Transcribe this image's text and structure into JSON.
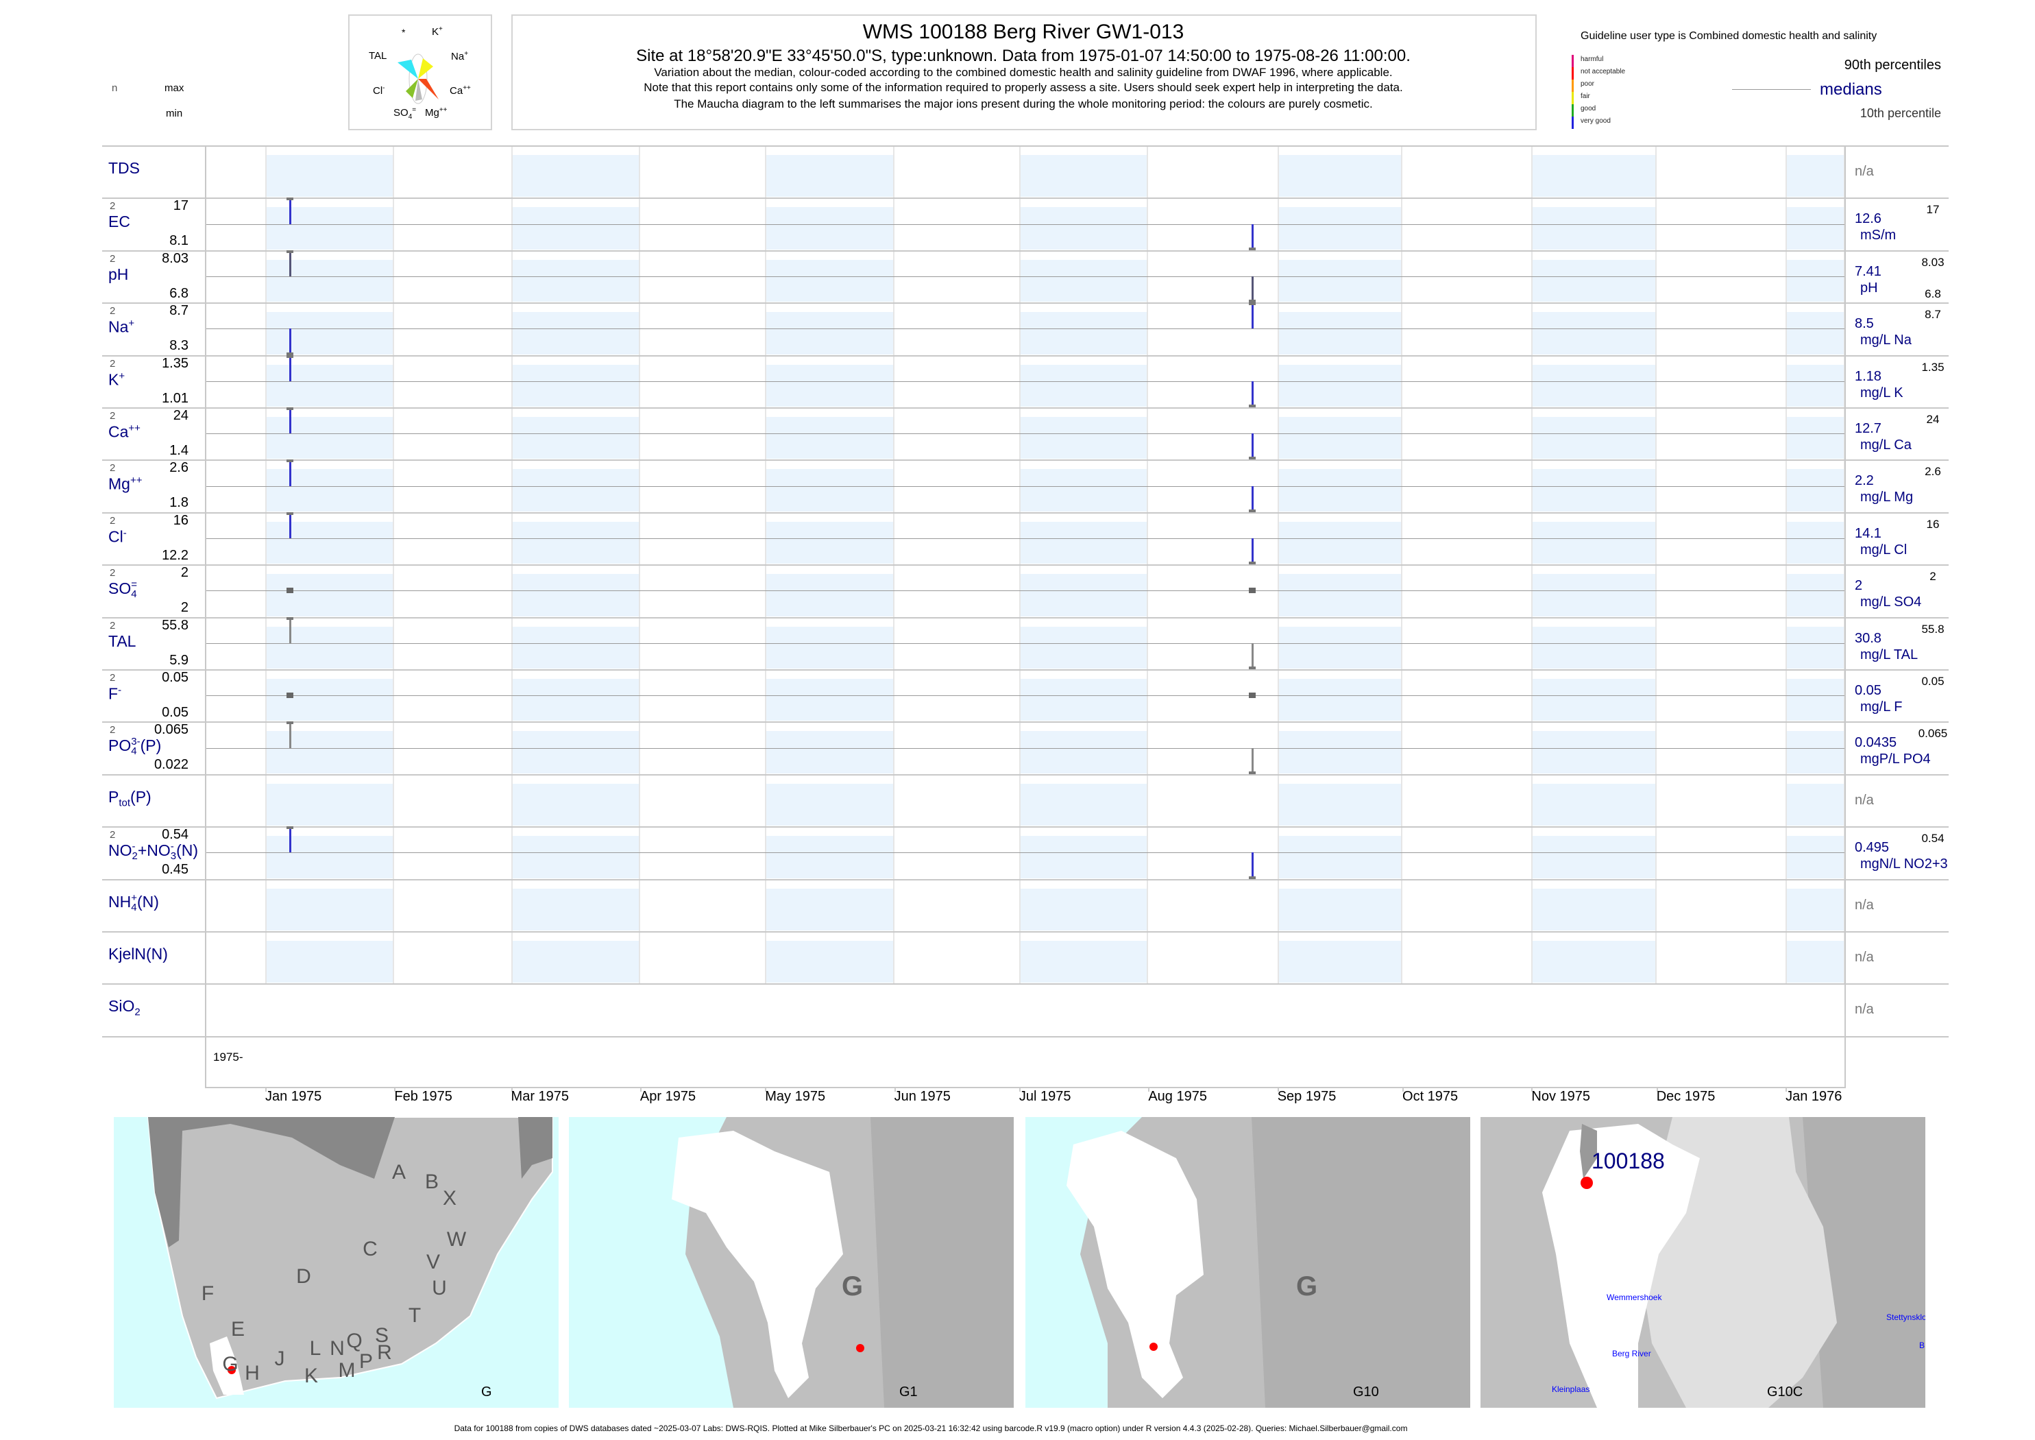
{
  "header": {
    "left_legend": {
      "n": "n",
      "max": "max",
      "min": "min"
    },
    "maucha_labels": {
      "star": "*",
      "k": "K",
      "k_sup": "+",
      "tal": "TAL",
      "na": "Na",
      "na_sup": "+",
      "cl": "Cl",
      "cl_sup": "-",
      "ca": "Ca",
      "ca_sup": "++",
      "so4": "SO",
      "so4_sub": "4",
      "so4_sup": "=",
      "mg": "Mg",
      "mg_sup": "++"
    },
    "maucha_colors": [
      "#33e6f5",
      "#f5f51a",
      "#f54a1a",
      "#88c22a",
      "#ffffff"
    ],
    "title": "WMS 100188  Berg River GW1-013",
    "subtitle": "Site at 18°58'20.9\"E 33°45'50.0\"S, type:unknown.  Data from 1975-01-07 14:50:00 to 1975-08-26 11:00:00.",
    "notes": [
      "Variation about the median,  colour-coded according to the combined domestic health and salinity guideline from DWAF 1996, where applicable.",
      "Note that this report contains only some of the information required to properly assess a site. Users should seek expert help in interpreting the data.",
      "The Maucha diagram to the left summarises the major ions present during the whole monitoring period: the colours are purely cosmetic."
    ],
    "guideline_title": "Guideline user type is Combined domestic health and salinity",
    "guideline_classes": [
      {
        "label": "harmful",
        "color": "#e0007a"
      },
      {
        "label": "not acceptable",
        "color": "#ff0000"
      },
      {
        "label": "poor",
        "color": "#ff9900"
      },
      {
        "label": "fair",
        "color": "#e8e800"
      },
      {
        "label": "good",
        "color": "#22aa22"
      },
      {
        "label": "very good",
        "color": "#2222dd"
      }
    ],
    "percentile_legend": {
      "p90": "90th percentiles",
      "median": "medians",
      "p10": "10th percentile"
    }
  },
  "chart_data": {
    "type": "bar",
    "x_type": "date",
    "sample_dates": [
      "1975-01-07",
      "1975-08-26"
    ],
    "xlim": [
      "1975-01-01",
      "1976-01-31"
    ],
    "x_tick_labels": [
      "Jan 1975",
      "Feb 1975",
      "Mar 1975",
      "Apr 1975",
      "May 1975",
      "Jun 1975",
      "Jul 1975",
      "Aug 1975",
      "Sep 1975",
      "Oct 1975",
      "Nov 1975",
      "Dec 1975",
      "Jan 1976"
    ],
    "year_label": "1975-",
    "colors": {
      "band": "#eaf4fd",
      "guideline_good": "#3333cc",
      "neutral": "#888888",
      "ph": "#555577"
    },
    "parameters": [
      {
        "id": "tds",
        "label": [
          {
            "t": "TDS"
          }
        ],
        "na": "n/a"
      },
      {
        "id": "ec",
        "label": [
          {
            "t": "EC"
          }
        ],
        "n": "2",
        "max": "17",
        "min": "8.1",
        "median": "12.6",
        "unit": "mS/m",
        "values": [
          17,
          8.1
        ],
        "color": "#3333cc"
      },
      {
        "id": "ph",
        "label": [
          {
            "t": "pH"
          }
        ],
        "n": "2",
        "max": "8.03",
        "min": "6.8",
        "median": "7.41",
        "unit": "pH",
        "values": [
          8.03,
          6.8
        ],
        "color": "#555577",
        "rmin": "6.8"
      },
      {
        "id": "na",
        "label": [
          {
            "t": "Na",
            "sup": "+"
          }
        ],
        "n": "2",
        "max": "8.7",
        "min": "8.3",
        "median": "8.5",
        "unit": "mg/L Na",
        "values": [
          8.3,
          8.7
        ],
        "color": "#3333cc"
      },
      {
        "id": "k",
        "label": [
          {
            "t": "K",
            "sup": "+"
          }
        ],
        "n": "2",
        "max": "1.35",
        "min": "1.01",
        "median": "1.18",
        "unit": "mg/L K",
        "values": [
          1.35,
          1.01
        ],
        "color": "#3333cc"
      },
      {
        "id": "ca",
        "label": [
          {
            "t": "Ca",
            "sup": "++"
          }
        ],
        "n": "2",
        "max": "24",
        "min": "1.4",
        "median": "12.7",
        "unit": "mg/L Ca",
        "values": [
          24,
          1.4
        ],
        "color": "#3333cc"
      },
      {
        "id": "mg",
        "label": [
          {
            "t": "Mg",
            "sup": "++"
          }
        ],
        "n": "2",
        "max": "2.6",
        "min": "1.8",
        "median": "2.2",
        "unit": "mg/L Mg",
        "values": [
          2.6,
          1.8
        ],
        "color": "#3333cc"
      },
      {
        "id": "cl",
        "label": [
          {
            "t": "Cl",
            "sup": "-"
          }
        ],
        "n": "2",
        "max": "16",
        "min": "12.2",
        "median": "14.1",
        "unit": "mg/L Cl",
        "values": [
          16,
          12.2
        ],
        "color": "#3333cc"
      },
      {
        "id": "so4",
        "label": [
          {
            "t": "SO",
            "sub": "4",
            "sup": "="
          }
        ],
        "n": "2",
        "max": "2",
        "min": "2",
        "median": "2",
        "unit": "mg/L SO4",
        "values": [
          2,
          2
        ],
        "color": "#777777"
      },
      {
        "id": "tal",
        "label": [
          {
            "t": "TAL"
          }
        ],
        "n": "2",
        "max": "55.8",
        "min": "5.9",
        "median": "30.8",
        "unit": "mg/L TAL",
        "values": [
          55.8,
          5.9
        ],
        "color": "#888888"
      },
      {
        "id": "f",
        "label": [
          {
            "t": "F",
            "sup": "-"
          }
        ],
        "n": "2",
        "max": "0.05",
        "min": "0.05",
        "median": "0.05",
        "unit": "mg/L F",
        "values": [
          0.05,
          0.05
        ],
        "color": "#777777"
      },
      {
        "id": "po4",
        "label": [
          {
            "t": "PO",
            "sub": "4",
            "sup": "3-"
          },
          {
            "t": "(P)"
          }
        ],
        "n": "2",
        "max": "0.065",
        "min": "0.022",
        "median": "0.0435",
        "unit": "mgP/L PO4",
        "values": [
          0.065,
          0.022
        ],
        "color": "#888888"
      },
      {
        "id": "ptot",
        "label": [
          {
            "t": "P"
          },
          {
            "sub": "tot"
          },
          {
            "t": "(P)"
          }
        ],
        "na": "n/a"
      },
      {
        "id": "no23",
        "label": [
          {
            "t": "NO",
            "sub": "2",
            "sup": "-"
          },
          {
            "t": "+NO",
            "sub": "3",
            "sup": "-"
          },
          {
            "t": "(N)"
          }
        ],
        "n": "2",
        "max": "0.54",
        "min": "0.45",
        "median": "0.495",
        "unit": "mgN/L NO2+3",
        "values": [
          0.54,
          0.45
        ],
        "color": "#3333cc"
      },
      {
        "id": "nh4",
        "label": [
          {
            "t": "NH",
            "sub": "4",
            "sup": "+"
          },
          {
            "t": "(N)"
          }
        ],
        "na": "n/a"
      },
      {
        "id": "kjeln",
        "label": [
          {
            "t": "KjelN(N)"
          }
        ],
        "na": "n/a"
      },
      {
        "id": "sio2",
        "label": [
          {
            "t": "SiO"
          },
          {
            "sub": "2"
          }
        ],
        "na": "n/a",
        "noband": true
      }
    ]
  },
  "maps": [
    {
      "caption": "G",
      "letters": [
        "A",
        "B",
        "X",
        "W",
        "C",
        "V",
        "D",
        "U",
        "F",
        "T",
        "E",
        "S",
        "Q",
        "N",
        "L",
        "R",
        "J",
        "P",
        "G",
        "H",
        "K",
        "M"
      ]
    },
    {
      "caption": "G1",
      "region": "G"
    },
    {
      "caption": "G10",
      "region": "G"
    },
    {
      "caption": "G10C",
      "site": "100188",
      "places": [
        "Wemmershoek",
        "Stettynskloof",
        "Berg River",
        "Kleinplaas",
        "B"
      ]
    }
  ],
  "footer": "Data for 100188 from copies of DWS databases dated ~2025-03-07 Labs: DWS-RQIS. Plotted at Mike Silberbauer's PC on 2025-03-21 16:32:42 using barcode.R v19.9 (macro option) under R version 4.4.3 (2025-02-28). Queries: Michael.Silberbauer@gmail.com"
}
